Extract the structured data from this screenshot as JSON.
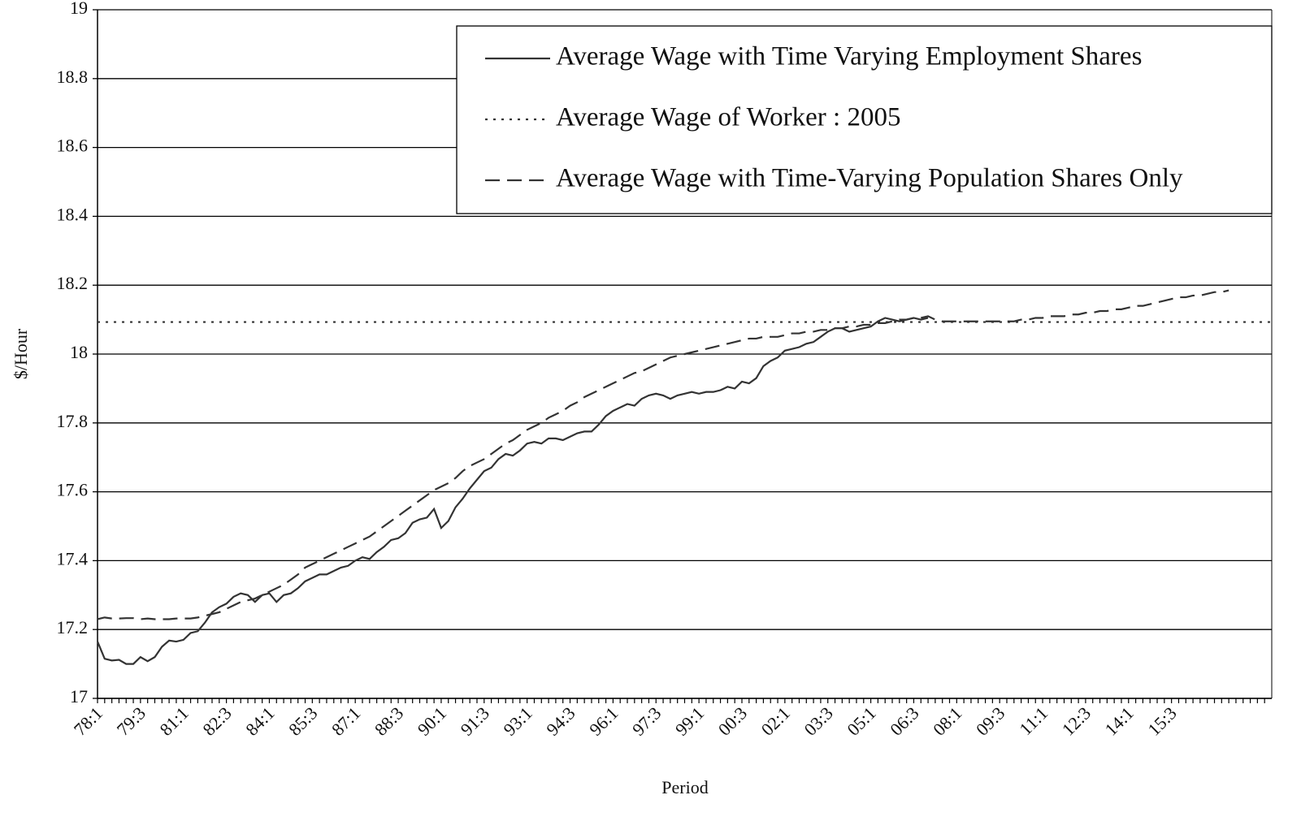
{
  "chart_data": {
    "type": "line",
    "y_label": "$/Hour",
    "x_label": "Period",
    "ylim": [
      17,
      19
    ],
    "yticks": [
      17,
      17.2,
      17.4,
      17.6,
      17.8,
      18,
      18.2,
      18.4,
      18.6,
      18.8,
      19
    ],
    "grid": true,
    "legend": "upper right",
    "categories": [
      "78:1",
      null,
      null,
      null,
      null,
      null,
      "79:3",
      null,
      null,
      null,
      null,
      null,
      "81:1",
      null,
      null,
      null,
      null,
      null,
      "82:3",
      null,
      null,
      null,
      null,
      null,
      "84:1",
      null,
      null,
      null,
      null,
      null,
      "85:3",
      null,
      null,
      null,
      null,
      null,
      "87:1",
      null,
      null,
      null,
      null,
      null,
      "88:3",
      null,
      null,
      null,
      null,
      null,
      "90:1",
      null,
      null,
      null,
      null,
      null,
      "91:3",
      null,
      null,
      null,
      null,
      null,
      "93:1",
      null,
      null,
      null,
      null,
      null,
      "94:3",
      null,
      null,
      null,
      null,
      null,
      "96:1",
      null,
      null,
      null,
      null,
      null,
      "97:3",
      null,
      null,
      null,
      null,
      null,
      "99:1",
      null,
      null,
      null,
      null,
      null,
      "00:3",
      null,
      null,
      null,
      null,
      null,
      "02:1",
      null,
      null,
      null,
      null,
      null,
      "03:3",
      null,
      null,
      null,
      null,
      null,
      "05:1",
      null,
      null,
      null,
      null,
      null,
      "06:3",
      null,
      null,
      null,
      null,
      null,
      "08:1",
      null,
      null,
      null,
      null,
      null,
      "09:3",
      null,
      null,
      null,
      null,
      null,
      "11:1",
      null,
      null,
      null,
      null,
      null,
      "12:3",
      null,
      null,
      null,
      null,
      null,
      "14:1",
      null,
      null,
      null,
      null,
      null,
      "15:3",
      null,
      null,
      null,
      null,
      null,
      null,
      null,
      null,
      null,
      null,
      null,
      null,
      null
    ],
    "series": [
      {
        "name": "Average Wage with Time Varying Employment Shares",
        "color": "#333333",
        "style": "solid",
        "values": [
          17.165,
          17.115,
          17.11,
          17.112,
          17.1,
          17.1,
          17.12,
          17.108,
          17.12,
          17.15,
          17.168,
          17.165,
          17.17,
          17.19,
          17.195,
          17.22,
          17.25,
          17.265,
          17.275,
          17.295,
          17.305,
          17.3,
          17.28,
          17.3,
          17.305,
          17.28,
          17.3,
          17.305,
          17.32,
          17.34,
          17.35,
          17.36,
          17.36,
          17.37,
          17.38,
          17.385,
          17.4,
          17.41,
          17.405,
          17.425,
          17.44,
          17.46,
          17.465,
          17.48,
          17.51,
          17.52,
          17.525,
          17.55,
          17.495,
          17.515,
          17.555,
          17.58,
          17.61,
          17.635,
          17.66,
          17.67,
          17.695,
          17.71,
          17.705,
          17.72,
          17.74,
          17.745,
          17.74,
          17.755,
          17.755,
          17.75,
          17.76,
          17.77,
          17.775,
          17.775,
          17.795,
          17.82,
          17.835,
          17.845,
          17.855,
          17.85,
          17.87,
          17.88,
          17.885,
          17.88,
          17.87,
          17.88,
          17.885,
          17.89,
          17.885,
          17.89,
          17.89,
          17.895,
          17.905,
          17.9,
          17.92,
          17.915,
          17.93,
          17.965,
          17.98,
          17.99,
          18.01,
          18.015,
          18.02,
          18.03,
          18.035,
          18.05,
          18.065,
          18.075,
          18.075,
          18.065,
          18.07,
          18.075,
          18.08,
          18.095,
          18.105,
          18.1,
          18.095,
          18.1,
          18.105,
          18.1,
          18.105,
          null,
          null,
          null,
          null,
          null,
          null,
          null,
          null,
          null,
          null,
          null,
          null,
          null,
          null,
          null,
          null,
          null,
          null,
          null,
          null,
          null,
          null,
          null,
          null,
          null,
          null,
          null,
          null,
          null,
          null,
          null,
          null,
          null,
          null,
          null,
          null,
          null,
          null,
          null,
          null,
          null,
          null,
          null,
          null,
          null,
          null,
          null
        ]
      },
      {
        "name": "Average Wage of Worker : 2005",
        "color": "#333333",
        "style": "dotted",
        "value": 18.093
      },
      {
        "name": "Average Wage with Time-Varying Population Shares Only",
        "color": "#333333",
        "style": "dashed",
        "values": [
          17.23,
          17.235,
          17.232,
          17.232,
          17.233,
          17.233,
          17.23,
          17.232,
          17.23,
          17.23,
          17.23,
          17.232,
          17.232,
          17.232,
          17.235,
          17.24,
          17.245,
          17.25,
          17.26,
          17.27,
          17.28,
          17.285,
          17.29,
          17.3,
          17.31,
          17.32,
          17.33,
          17.345,
          17.36,
          17.38,
          17.39,
          17.4,
          17.41,
          17.42,
          17.43,
          17.44,
          17.45,
          17.46,
          17.47,
          17.485,
          17.5,
          17.515,
          17.53,
          17.545,
          17.56,
          17.575,
          17.59,
          17.605,
          17.615,
          17.625,
          17.64,
          17.66,
          17.675,
          17.685,
          17.695,
          17.71,
          17.725,
          17.74,
          17.75,
          17.765,
          17.78,
          17.79,
          17.8,
          17.815,
          17.825,
          17.835,
          17.85,
          17.86,
          17.875,
          17.885,
          17.895,
          17.905,
          17.915,
          17.925,
          17.935,
          17.945,
          17.95,
          17.96,
          17.97,
          17.98,
          17.99,
          17.995,
          18.0,
          18.005,
          18.01,
          18.015,
          18.02,
          18.025,
          18.03,
          18.035,
          18.04,
          18.045,
          18.045,
          18.05,
          18.05,
          18.05,
          18.055,
          18.06,
          18.06,
          18.065,
          18.065,
          18.07,
          18.07,
          18.075,
          18.075,
          18.08,
          18.08,
          18.085,
          18.085,
          18.09,
          18.09,
          18.095,
          18.1,
          18.1,
          18.105,
          18.105,
          18.11,
          18.1,
          18.095,
          18.095,
          18.095,
          18.095,
          18.095,
          18.095,
          18.095,
          18.095,
          18.095,
          18.095,
          18.095,
          18.1,
          18.1,
          18.105,
          18.105,
          18.11,
          18.11,
          18.11,
          18.115,
          18.115,
          18.12,
          18.12,
          18.125,
          18.125,
          18.13,
          18.13,
          18.135,
          18.14,
          18.14,
          18.145,
          18.15,
          18.155,
          18.16,
          18.165,
          18.165,
          18.17,
          18.17,
          18.175,
          18.18,
          18.18,
          18.185,
          null,
          null,
          null,
          null,
          null
        ]
      }
    ]
  }
}
